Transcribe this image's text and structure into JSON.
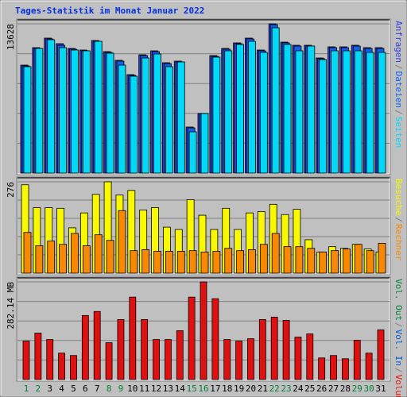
{
  "legend_separator": "/",
  "chart_data": [
    {
      "type": "bar",
      "title": "Tages-Statistik im Monat Januar 2022",
      "ylim": [
        0,
        13628
      ],
      "yticks": [
        13628
      ],
      "grid": true,
      "series": [
        {
          "name": "Anfragen",
          "color": "#3040d8",
          "values": [
            9859,
            11453,
            12323,
            11816,
            11381,
            11236,
            12106,
            11091,
            10294,
            8989,
            10801,
            11163,
            10076,
            10221,
            4204,
            5437,
            10729,
            11381,
            11888,
            12323,
            11236,
            13628,
            11961,
            11671,
            11671,
            10511,
            11526,
            11526,
            11671,
            11453,
            11453
          ]
        },
        {
          "name": "Dateien",
          "color": "#1060f0",
          "values": [
            9786,
            11381,
            12250,
            11671,
            11308,
            11163,
            12033,
            11018,
            10221,
            8916,
            10729,
            11091,
            10004,
            10149,
            4131,
            5437,
            10656,
            11308,
            11816,
            12250,
            11163,
            13556,
            11888,
            11598,
            11598,
            10439,
            11453,
            11453,
            11598,
            11381,
            11381
          ]
        },
        {
          "name": "Seiten",
          "color": "#00d8f8",
          "values": [
            9714,
            11381,
            12178,
            11453,
            11236,
            11163,
            12033,
            10946,
            9859,
            8844,
            10511,
            10874,
            9714,
            10149,
            3769,
            5437,
            10584,
            11163,
            11743,
            12033,
            11018,
            13266,
            11743,
            11163,
            11598,
            10366,
            11163,
            11163,
            11163,
            11018,
            11018
          ]
        }
      ]
    },
    {
      "type": "bar",
      "ylim": [
        0,
        276
      ],
      "yticks": [
        276
      ],
      "grid": true,
      "series": [
        {
          "name": "Besuche",
          "color": "#f8f800",
          "values": [
            267,
            198,
            198,
            196,
            137,
            182,
            238,
            276,
            236,
            250,
            191,
            198,
            139,
            132,
            222,
            175,
            132,
            196,
            132,
            182,
            186,
            208,
            177,
            193,
            101,
            64,
            80,
            75,
            87,
            73,
            64
          ]
        },
        {
          "name": "Rechner",
          "color": "#f88800",
          "values": [
            123,
            83,
            97,
            87,
            120,
            83,
            116,
            99,
            189,
            68,
            71,
            66,
            66,
            66,
            68,
            64,
            66,
            75,
            68,
            71,
            87,
            120,
            80,
            80,
            75,
            64,
            68,
            73,
            87,
            68,
            90
          ]
        }
      ]
    },
    {
      "type": "bar",
      "ylim": [
        0,
        282.14
      ],
      "yticks": [
        {
          "value": 282.14,
          "label": "282.14 MB"
        }
      ],
      "grid": true,
      "legend_only": [
        {
          "name": "Vol. Out",
          "color": "#008040"
        },
        {
          "name": "Vol. In",
          "color": "#0060d0"
        }
      ],
      "categories": [
        "1",
        "2",
        "3",
        "4",
        "5",
        "6",
        "7",
        "8",
        "9",
        "10",
        "11",
        "12",
        "13",
        "14",
        "15",
        "16",
        "17",
        "18",
        "19",
        "20",
        "21",
        "22",
        "23",
        "24",
        "25",
        "26",
        "27",
        "28",
        "29",
        "30",
        "31"
      ],
      "category_colors": [
        "#008040",
        "#008040",
        "#000",
        "#000",
        "#000",
        "#000",
        "#000",
        "#008040",
        "#008040",
        "#000",
        "#000",
        "#000",
        "#000",
        "#000",
        "#008040",
        "#008040",
        "#000",
        "#000",
        "#000",
        "#000",
        "#000",
        "#008040",
        "#008040",
        "#000",
        "#000",
        "#000",
        "#000",
        "#000",
        "#008040",
        "#008040",
        "#000"
      ],
      "series": [
        {
          "name": "Volumen",
          "color": "#e01010",
          "values": [
            111.0,
            134.1,
            115.6,
            76.3,
            69.4,
            185.0,
            196.6,
            106.4,
            173.4,
            238.2,
            173.4,
            115.6,
            115.6,
            141.1,
            238.2,
            282.14,
            233.6,
            115.6,
            111.0,
            117.9,
            173.4,
            180.4,
            171.1,
            122.6,
            131.8,
            62.4,
            69.4,
            60.1,
            113.3,
            76.3,
            143.4
          ]
        }
      ]
    }
  ]
}
